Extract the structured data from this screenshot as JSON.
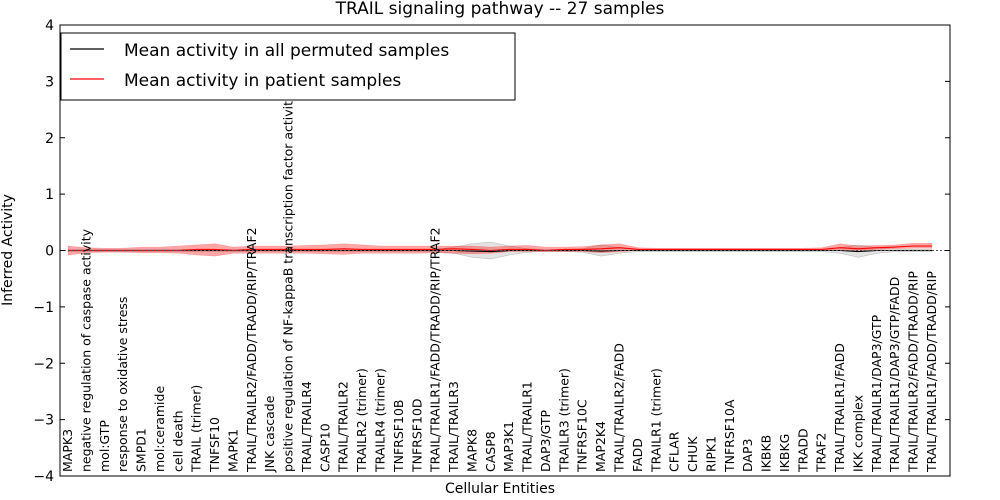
{
  "chart_data": {
    "type": "line",
    "title": "TRAIL signaling pathway -- 27 samples",
    "xlabel": "Cellular Entities",
    "ylabel": "Inferred Activity",
    "ylim": [
      -4,
      4
    ],
    "yticks": [
      "−4",
      "−3",
      "−2",
      "−1",
      "0",
      "1",
      "2",
      "3",
      "4"
    ],
    "legend": {
      "location": "top-left",
      "entries": [
        {
          "label": "Mean activity in all permuted samples",
          "color": "#000000"
        },
        {
          "label": "Mean activity in patient samples",
          "color": "#ff0000"
        }
      ]
    },
    "categories": [
      "MAPK3",
      "negative regulation of caspase activity",
      "mol:GTP",
      "response to oxidative stress",
      "SMPD1",
      "mol:ceramide",
      "cell death",
      "TRAIL (trimer)",
      "TNFSF10",
      "MAPK1",
      "TRAIL/TRAILR2/FADD/TRADD/RIP/TRAF2",
      "JNK cascade",
      "positive regulation of NF-kappaB transcription factor activity",
      "TRAIL/TRAILR4",
      "CASP10",
      "TRAIL/TRAILR2",
      "TRAILR2 (trimer)",
      "TRAILR4 (trimer)",
      "TNFRSF10B",
      "TNFRSF10D",
      "TRAIL/TRAILR1/FADD/TRADD/RIP/TRAF2",
      "TRAIL/TRAILR3",
      "MAPK8",
      "CASP8",
      "MAP3K1",
      "TRAIL/TRAILR1",
      "DAP3/GTP",
      "TRAILR3 (trimer)",
      "TNFRSF10C",
      "MAP2K4",
      "TRAIL/TRAILR2/FADD",
      "FADD",
      "TRAILR1 (trimer)",
      "CFLAR",
      "CHUK",
      "RIPK1",
      "TNFRSF10A",
      "DAP3",
      "IKBKB",
      "IKBKG",
      "TRADD",
      "TRAF2",
      "TRAIL/TRAILR1/FADD",
      "IKK complex",
      "TRAIL/TRAILR1/DAP3/GTP",
      "TRAIL/TRAILR1/DAP3/GTP/FADD",
      "TRAIL/TRAILR2/FADD/TRADD/RIP",
      "TRAIL/TRAILR1/FADD/TRADD/RIP"
    ],
    "series": [
      {
        "name": "Mean activity in all permuted samples",
        "color": "#000000",
        "values": [
          0.0,
          0.0,
          0.0,
          0.0,
          0.0,
          0.0,
          0.0,
          0.0,
          0.0,
          0.0,
          0.0,
          0.0,
          0.0,
          0.0,
          0.0,
          0.0,
          0.0,
          0.0,
          0.0,
          0.0,
          0.0,
          0.0,
          -0.01,
          -0.02,
          0.0,
          0.0,
          0.0,
          0.0,
          0.0,
          -0.01,
          0.0,
          0.0,
          0.0,
          0.0,
          0.0,
          0.0,
          0.0,
          0.0,
          0.0,
          0.0,
          0.0,
          0.0,
          0.0,
          -0.02,
          0.0,
          0.0,
          0.0,
          0.0
        ],
        "band_low": [
          -0.02,
          -0.02,
          -0.02,
          -0.02,
          -0.02,
          -0.02,
          -0.02,
          -0.02,
          -0.02,
          -0.02,
          -0.02,
          -0.02,
          -0.02,
          -0.02,
          -0.02,
          -0.02,
          -0.02,
          -0.02,
          -0.02,
          -0.02,
          -0.02,
          -0.05,
          -0.12,
          -0.15,
          -0.08,
          -0.03,
          -0.02,
          -0.02,
          -0.03,
          -0.1,
          -0.05,
          -0.02,
          -0.02,
          -0.02,
          -0.02,
          -0.02,
          -0.02,
          -0.02,
          -0.02,
          -0.02,
          -0.02,
          -0.02,
          -0.05,
          -0.12,
          -0.05,
          -0.02,
          -0.02,
          -0.02
        ],
        "band_high": [
          0.02,
          0.02,
          0.02,
          0.02,
          0.02,
          0.02,
          0.02,
          0.02,
          0.02,
          0.02,
          0.02,
          0.02,
          0.02,
          0.02,
          0.02,
          0.02,
          0.02,
          0.02,
          0.02,
          0.02,
          0.02,
          0.06,
          0.12,
          0.15,
          0.08,
          0.03,
          0.02,
          0.02,
          0.03,
          0.1,
          0.05,
          0.02,
          0.02,
          0.02,
          0.02,
          0.02,
          0.02,
          0.02,
          0.02,
          0.02,
          0.02,
          0.02,
          0.05,
          0.1,
          0.05,
          0.02,
          0.02,
          0.02
        ]
      },
      {
        "name": "Mean activity in patient samples",
        "color": "#ff0000",
        "values": [
          0.0,
          0.0,
          0.0,
          0.0,
          0.0,
          0.0,
          0.0,
          0.02,
          0.02,
          0.0,
          0.02,
          0.02,
          0.02,
          0.02,
          0.02,
          0.03,
          0.02,
          0.02,
          0.02,
          0.02,
          0.02,
          0.03,
          0.02,
          0.0,
          0.02,
          0.02,
          0.0,
          0.02,
          0.02,
          0.03,
          0.05,
          0.02,
          0.02,
          0.02,
          0.02,
          0.02,
          0.02,
          0.02,
          0.02,
          0.02,
          0.02,
          0.02,
          0.05,
          0.03,
          0.05,
          0.06,
          0.08,
          0.08
        ],
        "band_low": [
          -0.08,
          -0.04,
          -0.03,
          -0.03,
          -0.04,
          -0.04,
          -0.05,
          -0.08,
          -0.1,
          -0.05,
          -0.05,
          -0.05,
          -0.05,
          -0.05,
          -0.06,
          -0.07,
          -0.05,
          -0.05,
          -0.05,
          -0.05,
          -0.04,
          -0.05,
          -0.06,
          -0.05,
          -0.02,
          -0.02,
          -0.02,
          -0.02,
          -0.02,
          -0.04,
          -0.02,
          0.0,
          0.0,
          0.0,
          0.0,
          0.0,
          0.0,
          0.0,
          0.0,
          0.0,
          0.0,
          0.0,
          0.0,
          0.0,
          0.02,
          0.03,
          0.04,
          0.04
        ],
        "band_high": [
          0.08,
          0.05,
          0.04,
          0.04,
          0.06,
          0.06,
          0.08,
          0.1,
          0.12,
          0.06,
          0.08,
          0.08,
          0.08,
          0.09,
          0.1,
          0.12,
          0.1,
          0.08,
          0.08,
          0.08,
          0.08,
          0.08,
          0.08,
          0.06,
          0.08,
          0.09,
          0.06,
          0.06,
          0.07,
          0.1,
          0.12,
          0.05,
          0.04,
          0.04,
          0.04,
          0.04,
          0.04,
          0.04,
          0.04,
          0.04,
          0.04,
          0.05,
          0.12,
          0.08,
          0.09,
          0.1,
          0.13,
          0.13
        ]
      }
    ]
  }
}
